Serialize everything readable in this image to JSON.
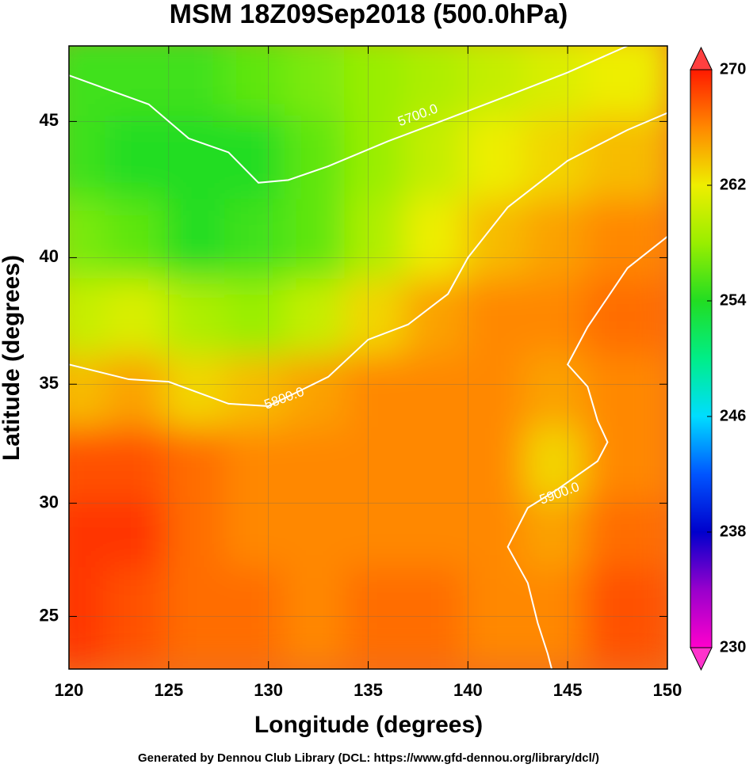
{
  "chart_data": {
    "type": "map",
    "projection": "mercator",
    "title": "MSM 18Z09Sep2018 (500.0hPa)",
    "x_label": "Longitude (degrees)",
    "y_label": "Latitude  (degrees)",
    "footer": "Generated by Dennou Club Library (DCL: https://www.gfd-dennou.org/library/dcl/)",
    "xlim": [
      120,
      150
    ],
    "ylim": [
      22.6,
      47.6
    ],
    "xticks": [
      120,
      125,
      130,
      135,
      140,
      145,
      150
    ],
    "yticks": [
      25,
      30,
      35,
      40,
      45
    ],
    "grid": true,
    "field": {
      "lons": [
        121,
        124,
        127,
        130,
        133,
        136,
        139,
        142,
        145,
        148
      ],
      "lats": [
        46,
        43,
        40,
        37,
        34,
        31,
        28,
        25
      ],
      "values": [
        [
          255,
          255,
          255,
          256,
          257,
          258,
          259,
          260,
          261,
          262
        ],
        [
          255,
          254,
          254,
          254,
          256,
          258,
          260,
          262,
          263,
          264
        ],
        [
          257,
          256,
          254,
          255,
          256,
          259,
          262,
          264,
          265,
          266
        ],
        [
          260,
          261,
          259,
          258,
          260,
          263,
          265,
          266,
          266,
          267
        ],
        [
          264,
          265,
          263,
          264,
          265,
          266,
          266,
          266,
          265,
          266
        ],
        [
          268,
          268,
          267,
          266,
          266,
          266,
          266,
          266,
          263,
          266
        ],
        [
          269,
          269,
          267,
          266,
          266,
          266,
          266,
          266,
          265,
          267
        ],
        [
          269,
          268,
          267,
          267,
          266,
          267,
          267,
          266,
          266,
          268
        ]
      ]
    },
    "colorbar": {
      "clim": [
        230,
        270
      ],
      "ticks": [
        230,
        238,
        246,
        254,
        262,
        270
      ],
      "colormap": [
        [
          230,
          "#ff00cc"
        ],
        [
          234,
          "#9900cc"
        ],
        [
          238,
          "#0000cc"
        ],
        [
          242,
          "#0055ff"
        ],
        [
          246,
          "#00ddff"
        ],
        [
          250,
          "#00ee88"
        ],
        [
          254,
          "#22dd22"
        ],
        [
          258,
          "#99ee00"
        ],
        [
          262,
          "#eeee00"
        ],
        [
          266,
          "#ff8800"
        ],
        [
          270,
          "#ff1a00"
        ]
      ]
    },
    "contours": [
      {
        "label": "5700.0",
        "label_at": [
          137.5,
          45.2
        ],
        "lon": [
          120,
          124,
          126,
          128,
          129.5,
          131,
          133,
          136,
          139,
          142,
          145,
          148
        ],
        "lat": [
          46.6,
          45.6,
          44.4,
          43.9,
          42.8,
          42.9,
          43.4,
          44.3,
          45.1,
          45.9,
          46.7,
          47.6
        ]
      },
      {
        "label": "5800.0",
        "label_at": [
          130.8,
          34.4
        ],
        "lon": [
          120,
          123,
          125,
          127,
          128,
          130,
          133,
          135,
          137,
          139,
          140,
          142,
          145,
          148,
          150
        ],
        "lat": [
          35.8,
          35.2,
          35.1,
          34.5,
          34.2,
          34.1,
          35.3,
          36.8,
          37.4,
          38.6,
          40,
          41.9,
          43.6,
          44.7,
          45.3
        ]
      },
      {
        "label": "5900.0",
        "label_at": [
          144.6,
          30.4
        ],
        "lon": [
          150,
          148,
          146,
          145,
          146,
          146.5,
          147,
          146.5,
          144.5,
          143,
          142,
          143,
          143.5,
          144,
          144.2
        ],
        "lat": [
          40.8,
          39.6,
          37.3,
          35.8,
          34.9,
          33.5,
          32.6,
          31.8,
          30.6,
          29.8,
          28.1,
          26.5,
          24.7,
          23.3,
          22.6
        ]
      }
    ]
  }
}
